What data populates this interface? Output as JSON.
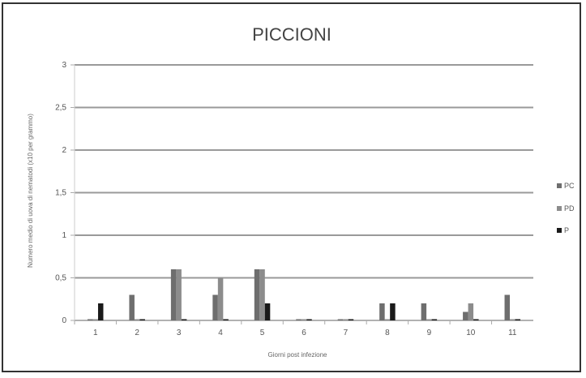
{
  "chart_data": {
    "type": "bar",
    "title": "PICCIONI",
    "subtitle": "",
    "xlabel": "Giorni post infezione",
    "ylabel": "Numero medio di uova di nematodi (x10 per grammo)",
    "ylim": [
      0,
      3
    ],
    "yticks": [
      "0",
      "0,5",
      "1",
      "1,5",
      "2",
      "2,5",
      "3"
    ],
    "grid": true,
    "legend_position": "right",
    "categories": [
      "1",
      "2",
      "3",
      "4",
      "5",
      "6",
      "7",
      "8",
      "9",
      "10",
      "11"
    ],
    "series": [
      {
        "name": "PC",
        "color": "#6e6e6e",
        "values": [
          0,
          0.3,
          0.6,
          0.3,
          0.6,
          0,
          0,
          0.2,
          0.2,
          0.1,
          0.3
        ]
      },
      {
        "name": "PD",
        "color": "#8c8c8c",
        "values": [
          0,
          0,
          0.6,
          0.5,
          0.6,
          0,
          0,
          0,
          0,
          0.2,
          0
        ]
      },
      {
        "name": "P",
        "color": "#1a1a1a",
        "values": [
          0.2,
          0,
          0,
          0,
          0.2,
          0,
          0,
          0.2,
          0,
          0,
          0
        ]
      }
    ]
  }
}
